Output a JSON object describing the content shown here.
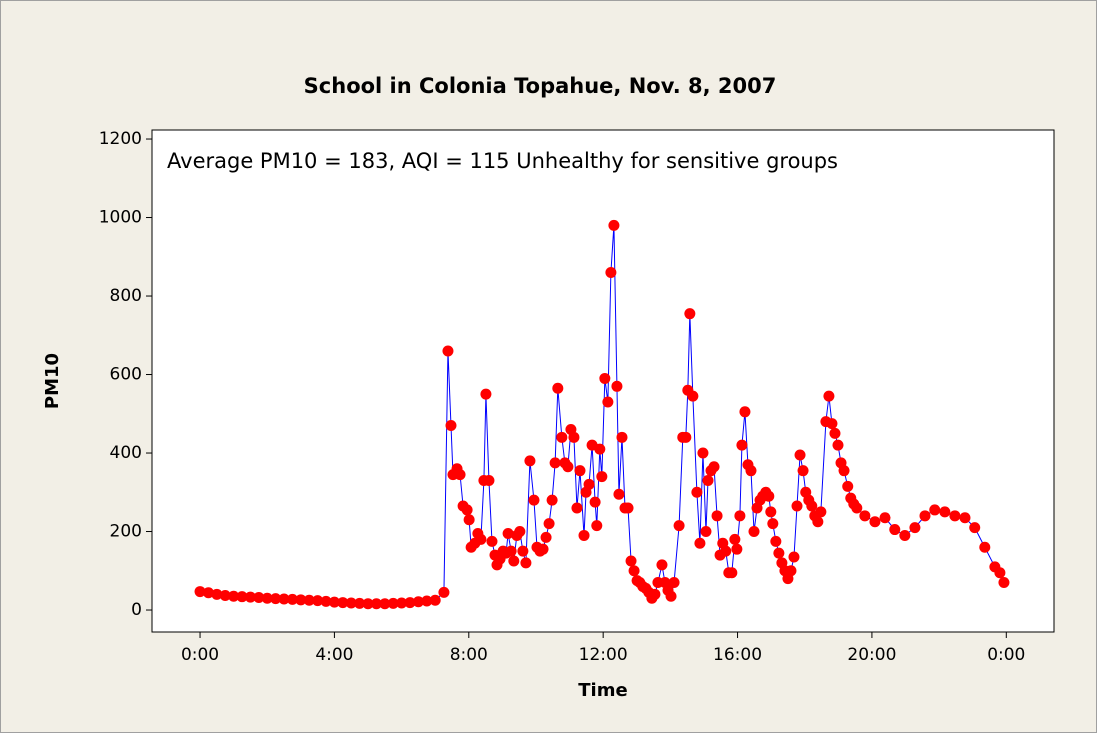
{
  "chart_data": {
    "type": "line",
    "title": "School in Colonia Topahue, Nov. 8, 2007",
    "annotation": "Average PM10 = 183, AQI = 115 Unhealthy for sensitive groups",
    "x_label": "Time",
    "y_label": "PM10",
    "xlim": [
      -1.43,
      25.42
    ],
    "ylim": [
      -56,
      1223
    ],
    "xticks": [
      {
        "value": 0,
        "label": "0:00"
      },
      {
        "value": 4,
        "label": "4:00"
      },
      {
        "value": 8,
        "label": "8:00"
      },
      {
        "value": 12,
        "label": "12:00"
      },
      {
        "value": 16,
        "label": "16:00"
      },
      {
        "value": 20,
        "label": "20:00"
      },
      {
        "value": 24,
        "label": "0:00"
      }
    ],
    "yticks": [
      0,
      200,
      400,
      600,
      800,
      1000,
      1200
    ],
    "line_color": "#0000ff",
    "marker_color": "#ff0000",
    "x": [
      0,
      0.25,
      0.5,
      0.75,
      1,
      1.25,
      1.5,
      1.75,
      2,
      2.25,
      2.5,
      2.75,
      3,
      3.25,
      3.5,
      3.75,
      4,
      4.25,
      4.5,
      4.75,
      5,
      5.25,
      5.5,
      5.75,
      6,
      6.25,
      6.5,
      6.75,
      7,
      7.26,
      7.38,
      7.47,
      7.53,
      7.65,
      7.74,
      7.83,
      7.95,
      8.01,
      8.07,
      8.18,
      8.27,
      8.36,
      8.45,
      8.51,
      8.6,
      8.69,
      8.78,
      8.84,
      8.93,
      9.02,
      9.11,
      9.17,
      9.26,
      9.34,
      9.43,
      9.52,
      9.61,
      9.7,
      9.82,
      9.94,
      10.03,
      10.12,
      10.21,
      10.3,
      10.39,
      10.48,
      10.57,
      10.65,
      10.77,
      10.86,
      10.95,
      11.04,
      11.13,
      11.22,
      11.31,
      11.43,
      11.49,
      11.58,
      11.67,
      11.76,
      11.81,
      11.9,
      11.96,
      12.05,
      12.14,
      12.23,
      12.32,
      12.41,
      12.47,
      12.56,
      12.65,
      12.74,
      12.83,
      12.92,
      13.01,
      13.09,
      13.18,
      13.27,
      13.36,
      13.45,
      13.54,
      13.63,
      13.75,
      13.84,
      13.93,
      14.02,
      14.11,
      14.26,
      14.37,
      14.46,
      14.52,
      14.58,
      14.67,
      14.79,
      14.88,
      14.97,
      15.06,
      15.12,
      15.21,
      15.3,
      15.39,
      15.48,
      15.56,
      15.65,
      15.74,
      15.83,
      15.92,
      15.98,
      16.07,
      16.13,
      16.22,
      16.31,
      16.4,
      16.49,
      16.58,
      16.67,
      16.75,
      16.84,
      16.93,
      16.99,
      17.05,
      17.14,
      17.23,
      17.32,
      17.41,
      17.5,
      17.59,
      17.68,
      17.77,
      17.86,
      17.95,
      18.03,
      18.12,
      18.21,
      18.3,
      18.39,
      18.48,
      18.63,
      18.72,
      18.81,
      18.9,
      18.99,
      19.08,
      19.17,
      19.28,
      19.37,
      19.46,
      19.55,
      19.79,
      20.09,
      20.39,
      20.68,
      20.98,
      21.28,
      21.58,
      21.87,
      22.17,
      22.47,
      22.77,
      23.06,
      23.36,
      23.66,
      23.81,
      23.93
    ],
    "values": [
      47,
      44,
      40,
      37,
      35,
      34,
      33,
      32,
      30,
      29,
      28,
      27,
      26,
      25,
      24,
      22,
      20,
      19,
      18,
      17,
      16,
      16,
      16,
      17,
      18,
      19,
      21,
      23,
      25,
      45,
      660,
      470,
      345,
      360,
      345,
      265,
      255,
      230,
      160,
      170,
      195,
      180,
      330,
      550,
      330,
      175,
      140,
      115,
      130,
      150,
      145,
      195,
      150,
      125,
      190,
      200,
      150,
      120,
      380,
      280,
      160,
      150,
      155,
      185,
      220,
      280,
      375,
      565,
      440,
      375,
      365,
      460,
      440,
      260,
      355,
      190,
      300,
      320,
      420,
      275,
      215,
      410,
      340,
      590,
      530,
      860,
      980,
      570,
      295,
      440,
      260,
      260,
      125,
      100,
      75,
      70,
      60,
      55,
      45,
      30,
      40,
      70,
      115,
      70,
      50,
      35,
      70,
      215,
      440,
      440,
      560,
      755,
      545,
      300,
      170,
      400,
      200,
      330,
      355,
      365,
      240,
      140,
      170,
      150,
      95,
      95,
      180,
      155,
      240,
      420,
      505,
      370,
      355,
      200,
      260,
      280,
      290,
      300,
      290,
      250,
      220,
      175,
      145,
      120,
      100,
      80,
      100,
      135,
      265,
      395,
      355,
      300,
      280,
      265,
      240,
      225,
      250,
      480,
      545,
      475,
      450,
      420,
      375,
      355,
      315,
      285,
      270,
      260,
      240,
      225,
      235,
      205,
      190,
      210,
      240,
      255,
      250,
      240,
      235,
      210,
      160,
      110,
      95,
      70
    ]
  }
}
